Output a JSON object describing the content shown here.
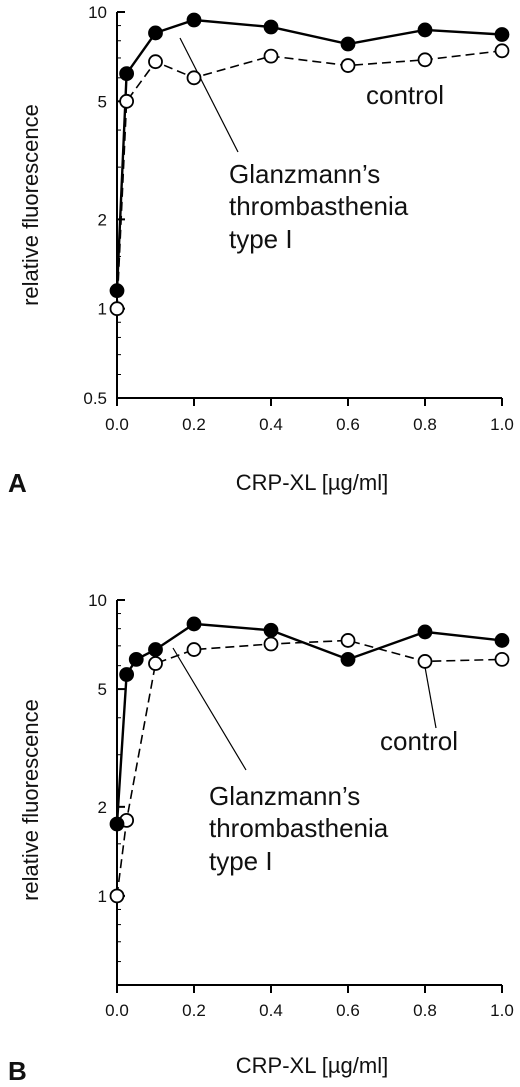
{
  "chart_data": [
    {
      "panel": "A",
      "type": "line",
      "xlabel": "CRP-XL [µg/ml]",
      "ylabel": "relative fluorescence",
      "xlim": [
        0.0,
        1.0
      ],
      "ylim": [
        0.5,
        10
      ],
      "yscale": "log",
      "x_ticks": [
        "0.0",
        "0.2",
        "0.4",
        "0.6",
        "0.8",
        "1.0"
      ],
      "y_ticks": [
        "0.5",
        "1",
        "2",
        "5",
        "10"
      ],
      "series": [
        {
          "name": "Glanzmann's thrombasthenia type I",
          "marker": "filled-circle",
          "line": "solid",
          "x": [
            0,
            0.025,
            0.1,
            0.2,
            0.4,
            0.6,
            0.8,
            1.0
          ],
          "y": [
            1.15,
            6.2,
            8.5,
            9.4,
            8.9,
            7.8,
            8.7,
            8.4
          ]
        },
        {
          "name": "control",
          "marker": "open-circle",
          "line": "dashed",
          "x": [
            0,
            0.025,
            0.1,
            0.2,
            0.4,
            0.6,
            0.8,
            1.0
          ],
          "y": [
            1.0,
            5.0,
            6.8,
            6.0,
            7.1,
            6.6,
            6.9,
            7.4
          ]
        }
      ],
      "annotations": {
        "control": "control",
        "gt_line1": "Glanzmann’s",
        "gt_line2": "thrombasthenia",
        "gt_line3": "type I"
      }
    },
    {
      "panel": "B",
      "type": "line",
      "xlabel": "CRP-XL [µg/ml]",
      "ylabel": "relative fluorescence",
      "xlim": [
        0.0,
        1.0
      ],
      "ylim": [
        0.5,
        10
      ],
      "yscale": "log",
      "x_ticks": [
        "0.0",
        "0.2",
        "0.4",
        "0.6",
        "0.8",
        "1.0"
      ],
      "y_ticks": [
        "1",
        "2",
        "5",
        "10"
      ],
      "series": [
        {
          "name": "Glanzmann's thrombasthenia type I",
          "marker": "filled-circle",
          "line": "solid",
          "x": [
            0,
            0.025,
            0.05,
            0.1,
            0.2,
            0.4,
            0.6,
            0.8,
            1.0
          ],
          "y": [
            1.75,
            5.6,
            6.3,
            6.8,
            8.3,
            7.9,
            6.3,
            7.8,
            7.3
          ]
        },
        {
          "name": "control",
          "marker": "open-circle",
          "line": "dashed",
          "x": [
            0,
            0.025,
            0.1,
            0.2,
            0.4,
            0.6,
            0.8,
            1.0
          ],
          "y": [
            1.0,
            1.8,
            6.1,
            6.8,
            7.1,
            7.3,
            6.2,
            6.3
          ]
        }
      ],
      "annotations": {
        "control": "control",
        "gt_line1": "Glanzmann’s",
        "gt_line2": "thrombasthenia",
        "gt_line3": "type I"
      }
    }
  ]
}
